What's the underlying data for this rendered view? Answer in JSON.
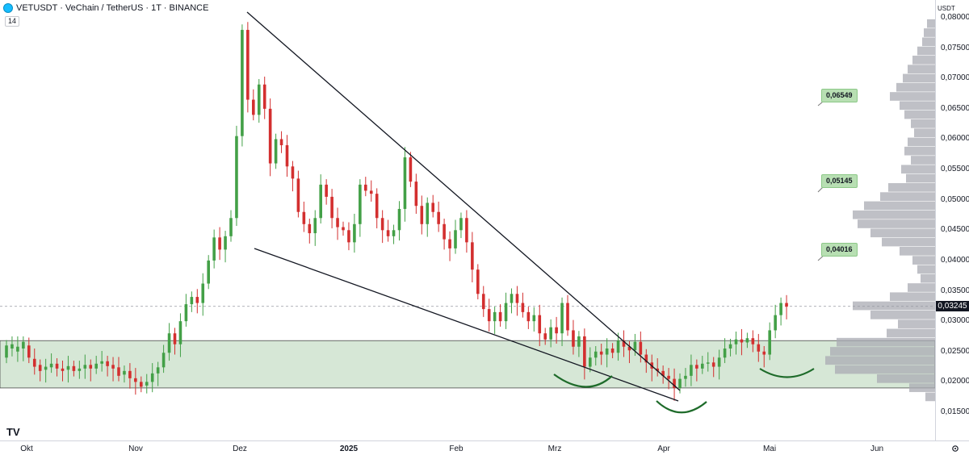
{
  "header": {
    "title": "VETUSDT · VeChain / TetherUS · 1T · BINANCE",
    "indicator_value": "14"
  },
  "price_scale": {
    "currency": "USDT",
    "current_price": "0,03245",
    "ticks": [
      "0,08000",
      "0,07500",
      "0,07000",
      "0,06500",
      "0,06000",
      "0,05500",
      "0,05000",
      "0,04500",
      "0,04000",
      "0,03500",
      "0,03000",
      "0,02500",
      "0,02000",
      "0,01500"
    ]
  },
  "time_scale": {
    "ticks": [
      "Okt",
      "Nov",
      "Dez",
      "2025",
      "Feb",
      "Mrz",
      "Apr",
      "Mai",
      "Jun"
    ]
  },
  "annotations": {
    "target_1": "0,06549",
    "target_2": "0,05145",
    "target_3": "0,04016"
  },
  "colors": {
    "up": "#26a69a",
    "down": "#d32f2f",
    "up_candle": "#43a047",
    "zone": "#c8dfc8",
    "volume_profile": "#a9abb3",
    "arc": "#1e6b2a"
  },
  "branding": {
    "logo": "TV"
  },
  "chart_data": {
    "type": "candlestick",
    "symbol": "VETUSDT",
    "ylim": [
      0.0125,
      0.0815
    ],
    "support_zone": [
      0.019,
      0.0268
    ],
    "last_price": 0.03245,
    "series": [
      {
        "name": "VETUSDT",
        "points": [
          [
            0.024,
            0.026
          ],
          [
            0.0255,
            0.0262
          ],
          [
            0.025,
            0.0258
          ],
          [
            0.0255,
            0.0266
          ],
          [
            0.026,
            0.024
          ],
          [
            0.0238,
            0.0225
          ],
          [
            0.0228,
            0.0218
          ],
          [
            0.022,
            0.0225
          ],
          [
            0.0224,
            0.023
          ],
          [
            0.023,
            0.0222
          ],
          [
            0.0222,
            0.0218
          ],
          [
            0.022,
            0.0226
          ],
          [
            0.0226,
            0.0218
          ],
          [
            0.0218,
            0.0222
          ],
          [
            0.0222,
            0.0228
          ],
          [
            0.0228,
            0.0222
          ],
          [
            0.0222,
            0.023
          ],
          [
            0.023,
            0.0234
          ],
          [
            0.0234,
            0.0226
          ],
          [
            0.0228,
            0.0222
          ],
          [
            0.0224,
            0.021
          ],
          [
            0.0212,
            0.0218
          ],
          [
            0.0218,
            0.0206
          ],
          [
            0.0206,
            0.02
          ],
          [
            0.02,
            0.0192
          ],
          [
            0.0194,
            0.02
          ],
          [
            0.02,
            0.0214
          ],
          [
            0.0214,
            0.0224
          ],
          [
            0.0224,
            0.0248
          ],
          [
            0.0248,
            0.028
          ],
          [
            0.028,
            0.0262
          ],
          [
            0.0262,
            0.03
          ],
          [
            0.03,
            0.0328
          ],
          [
            0.0328,
            0.034
          ],
          [
            0.034,
            0.033
          ],
          [
            0.033,
            0.0362
          ],
          [
            0.0362,
            0.04
          ],
          [
            0.04,
            0.0438
          ],
          [
            0.0438,
            0.0418
          ],
          [
            0.0418,
            0.044
          ],
          [
            0.044,
            0.047
          ],
          [
            0.047,
            0.0605
          ],
          [
            0.0605,
            0.078
          ],
          [
            0.078,
            0.0665
          ],
          [
            0.0665,
            0.064
          ],
          [
            0.064,
            0.069
          ],
          [
            0.069,
            0.065
          ],
          [
            0.065,
            0.056
          ],
          [
            0.056,
            0.06
          ],
          [
            0.06,
            0.059
          ],
          [
            0.059,
            0.0555
          ],
          [
            0.0555,
            0.0535
          ],
          [
            0.0535,
            0.048
          ],
          [
            0.048,
            0.046
          ],
          [
            0.046,
            0.0445
          ],
          [
            0.0445,
            0.047
          ],
          [
            0.047,
            0.0525
          ],
          [
            0.0525,
            0.0505
          ],
          [
            0.0505,
            0.047
          ],
          [
            0.047,
            0.0455
          ],
          [
            0.0455,
            0.045
          ],
          [
            0.045,
            0.043
          ],
          [
            0.043,
            0.046
          ],
          [
            0.046,
            0.0525
          ],
          [
            0.0525,
            0.0515
          ],
          [
            0.0515,
            0.051
          ],
          [
            0.051,
            0.047
          ],
          [
            0.047,
            0.045
          ],
          [
            0.045,
            0.044
          ],
          [
            0.044,
            0.045
          ],
          [
            0.045,
            0.0485
          ],
          [
            0.0485,
            0.057
          ],
          [
            0.057,
            0.053
          ],
          [
            0.053,
            0.049
          ],
          [
            0.049,
            0.046
          ],
          [
            0.046,
            0.0495
          ],
          [
            0.0495,
            0.048
          ],
          [
            0.048,
            0.046
          ],
          [
            0.046,
            0.0435
          ],
          [
            0.0435,
            0.042
          ],
          [
            0.042,
            0.045
          ],
          [
            0.045,
            0.047
          ],
          [
            0.047,
            0.043
          ],
          [
            0.043,
            0.0385
          ],
          [
            0.0385,
            0.0345
          ],
          [
            0.0345,
            0.032
          ],
          [
            0.032,
            0.03
          ],
          [
            0.03,
            0.0315
          ],
          [
            0.0315,
            0.03
          ],
          [
            0.03,
            0.033
          ],
          [
            0.033,
            0.0345
          ],
          [
            0.0345,
            0.033
          ],
          [
            0.033,
            0.0315
          ],
          [
            0.0315,
            0.03
          ],
          [
            0.03,
            0.031
          ],
          [
            0.031,
            0.028
          ],
          [
            0.028,
            0.027
          ],
          [
            0.027,
            0.029
          ],
          [
            0.029,
            0.028
          ],
          [
            0.028,
            0.033
          ],
          [
            0.033,
            0.0285
          ],
          [
            0.0285,
            0.0258
          ],
          [
            0.0258,
            0.0275
          ],
          [
            0.0275,
            0.0225
          ],
          [
            0.0225,
            0.024
          ],
          [
            0.024,
            0.025
          ],
          [
            0.025,
            0.0245
          ],
          [
            0.0245,
            0.0255
          ],
          [
            0.0255,
            0.0248
          ],
          [
            0.0248,
            0.0268
          ],
          [
            0.0268,
            0.0258
          ],
          [
            0.0258,
            0.0252
          ],
          [
            0.0252,
            0.0266
          ],
          [
            0.0266,
            0.0245
          ],
          [
            0.0245,
            0.0232
          ],
          [
            0.0232,
            0.0222
          ],
          [
            0.0222,
            0.0218
          ],
          [
            0.0218,
            0.021
          ],
          [
            0.021,
            0.0205
          ],
          [
            0.0205,
            0.019
          ],
          [
            0.019,
            0.0205
          ],
          [
            0.0205,
            0.021
          ],
          [
            0.021,
            0.0228
          ],
          [
            0.0228,
            0.0222
          ],
          [
            0.0222,
            0.023
          ],
          [
            0.023,
            0.0232
          ],
          [
            0.0232,
            0.0225
          ],
          [
            0.0225,
            0.024
          ],
          [
            0.024,
            0.0255
          ],
          [
            0.0255,
            0.0262
          ],
          [
            0.0262,
            0.027
          ],
          [
            0.027,
            0.0265
          ],
          [
            0.0265,
            0.0272
          ],
          [
            0.0272,
            0.0262
          ],
          [
            0.0262,
            0.025
          ],
          [
            0.025,
            0.0245
          ],
          [
            0.0245,
            0.0285
          ],
          [
            0.0285,
            0.031
          ],
          [
            0.031,
            0.033
          ],
          [
            0.033,
            0.0324
          ]
        ]
      }
    ]
  }
}
